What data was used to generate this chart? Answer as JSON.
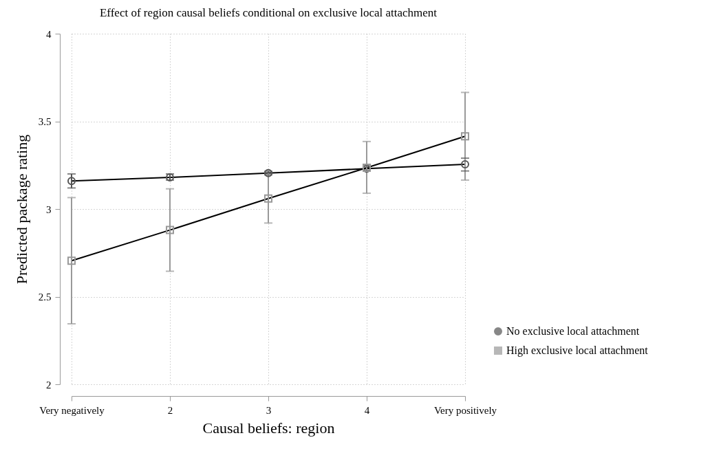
{
  "chart_data": {
    "type": "line",
    "title": "Effect of region causal beliefs conditional on exclusive local attachment",
    "xlabel": "Causal beliefs: region",
    "ylabel": "Predicted package rating",
    "categories": [
      "Very negatively",
      "2",
      "3",
      "4",
      "Very positively"
    ],
    "series": [
      {
        "name": "No exclusive local attachment",
        "color": "#555555",
        "marker": "circle",
        "values": [
          3.16,
          3.18,
          3.205,
          3.23,
          3.255
        ],
        "errors": [
          [
            3.12,
            3.2
          ],
          [
            3.165,
            3.2
          ],
          [
            3.195,
            3.215
          ],
          [
            3.22,
            3.24
          ],
          [
            3.217,
            3.29
          ]
        ]
      },
      {
        "name": "High exclusive local attachment",
        "color": "#999999",
        "marker": "square",
        "values": [
          2.705,
          2.88,
          3.06,
          3.235,
          3.415
        ],
        "errors": [
          [
            2.345,
            3.065
          ],
          [
            2.645,
            3.115
          ],
          [
            2.92,
            3.2
          ],
          [
            3.09,
            3.385
          ],
          [
            3.165,
            3.665
          ]
        ]
      }
    ],
    "ylim": [
      2,
      4
    ],
    "yticks": [
      2,
      2.5,
      3,
      3.5,
      4
    ],
    "grid": true,
    "legend": "bottom right",
    "line_style": "solid"
  }
}
